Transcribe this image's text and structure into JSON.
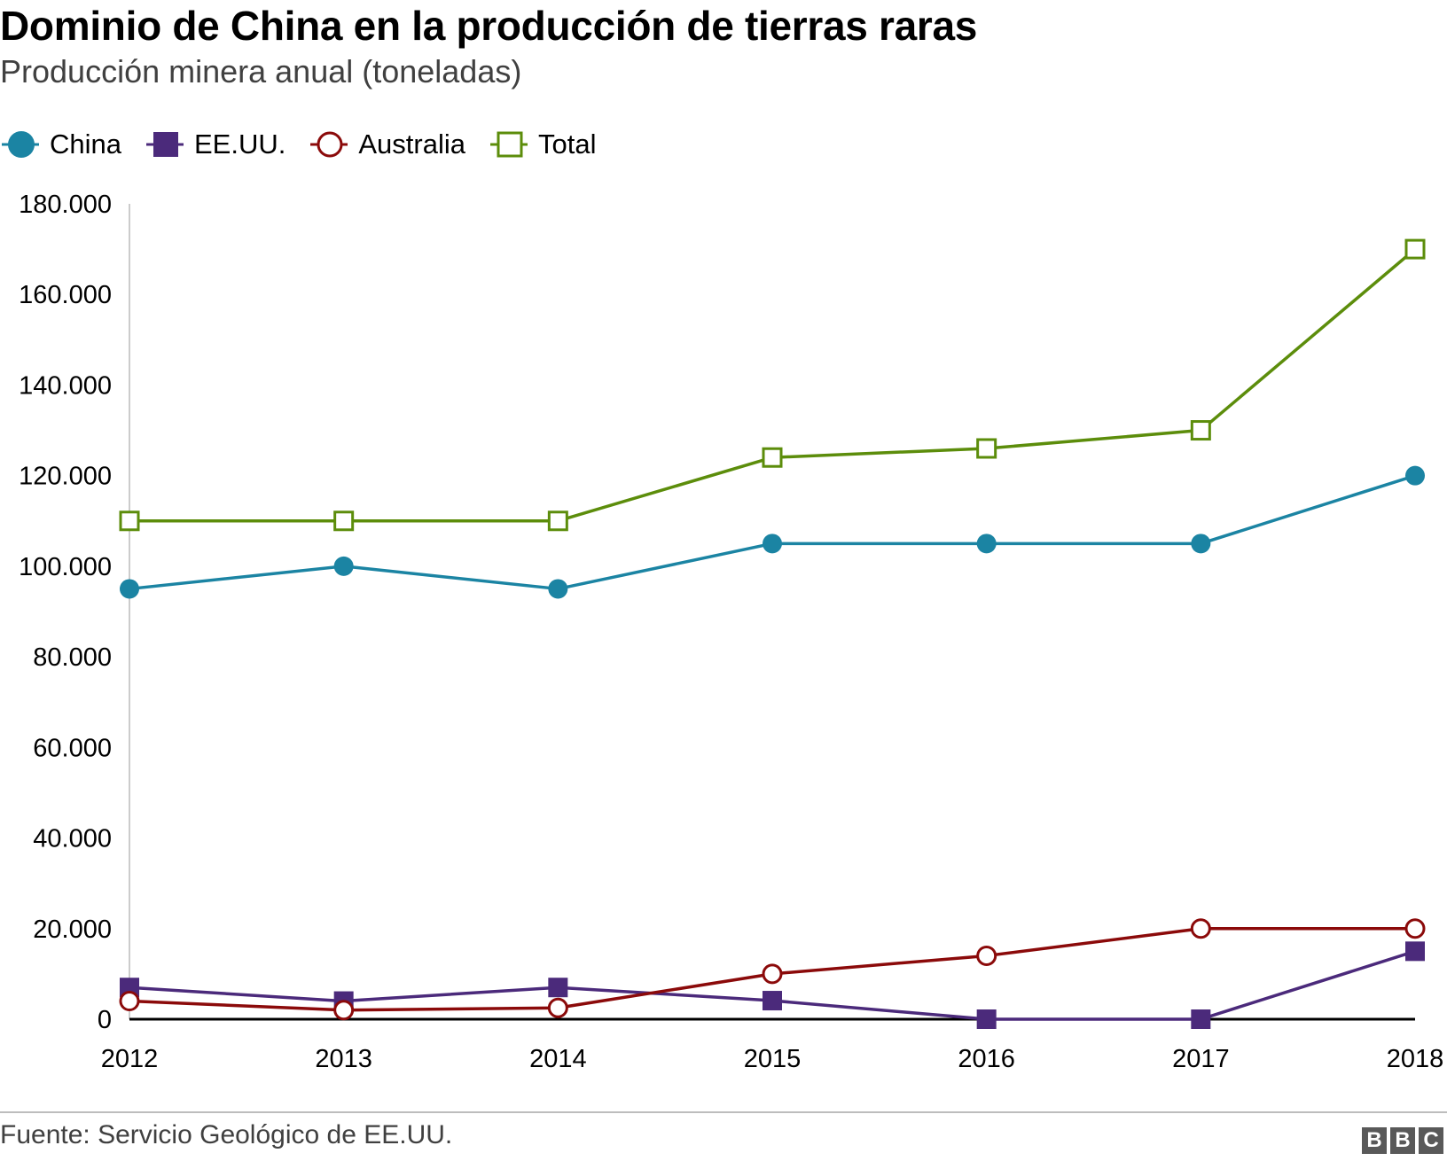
{
  "chart_data": {
    "type": "line",
    "title": "Dominio de China en la producción de tierras raras",
    "subtitle": "Producción minera anual (toneladas)",
    "x": [
      "2012",
      "2013",
      "2014",
      "2015",
      "2016",
      "2017",
      "2018"
    ],
    "ylim": [
      0,
      180000
    ],
    "yticks": [
      0,
      20000,
      40000,
      60000,
      80000,
      100000,
      120000,
      140000,
      160000,
      180000
    ],
    "ytick_labels": [
      "0",
      "20.000",
      "40.000",
      "60.000",
      "80.000",
      "100.000",
      "120.000",
      "140.000",
      "160.000",
      "180.000"
    ],
    "grid": false,
    "legend_position": "top-left",
    "series": [
      {
        "name": "China",
        "color": "#1b84a3",
        "marker": "filled-circle",
        "values": [
          95000,
          100000,
          95000,
          105000,
          105000,
          105000,
          120000
        ]
      },
      {
        "name": "EE.UU.",
        "color": "#4b2a7b",
        "marker": "filled-square",
        "values": [
          7000,
          4000,
          7000,
          4100,
          0,
          0,
          15000
        ]
      },
      {
        "name": "Australia",
        "color": "#8b0a0a",
        "marker": "open-circle",
        "values": [
          4000,
          2000,
          2500,
          10000,
          14000,
          20000,
          20000
        ]
      },
      {
        "name": "Total",
        "color": "#5c8d0b",
        "marker": "open-square",
        "values": [
          110000,
          110000,
          110000,
          124000,
          126000,
          130000,
          170000
        ]
      }
    ]
  },
  "footer": {
    "source": "Fuente: Servicio Geológico de EE.UU.",
    "logo_letters": [
      "B",
      "B",
      "C"
    ]
  }
}
